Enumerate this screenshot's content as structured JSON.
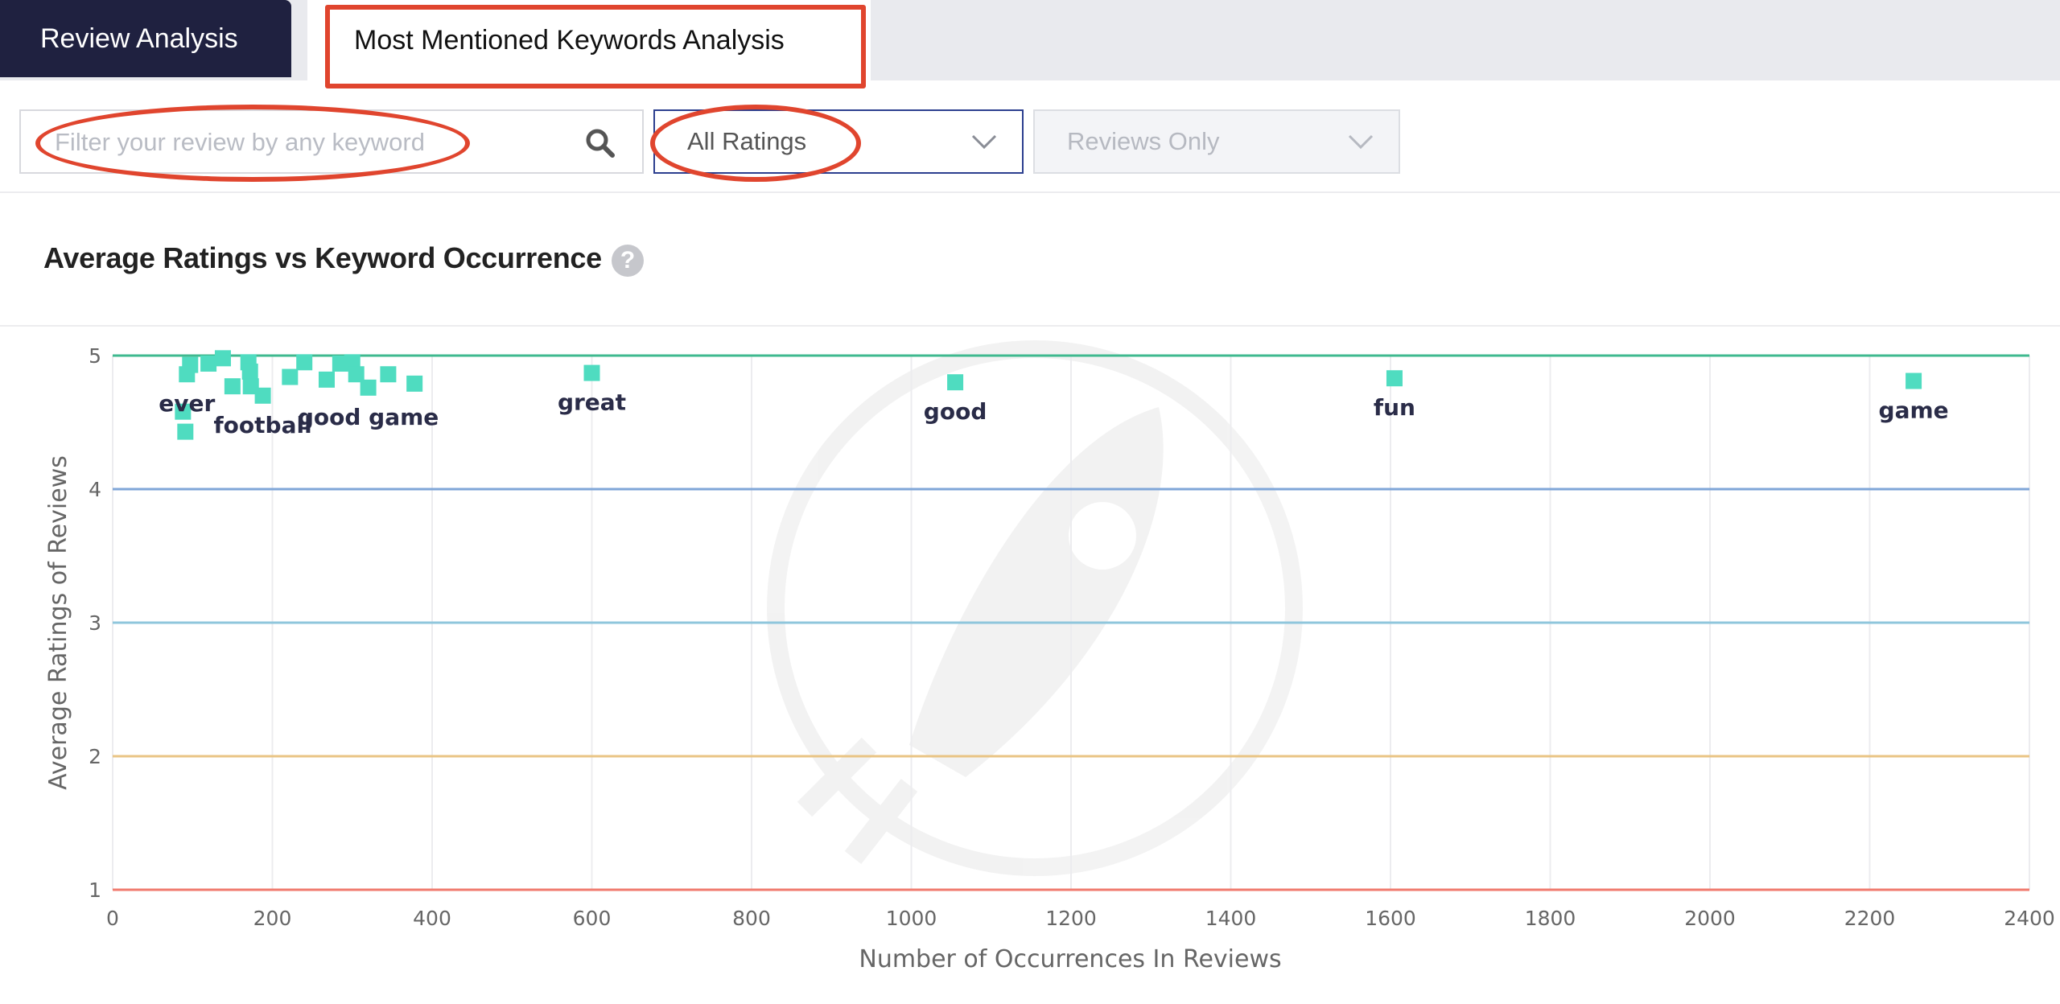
{
  "tabs": [
    {
      "label": "Review Analysis",
      "active": false
    },
    {
      "label": "Most Mentioned Keywords Analysis",
      "active": true
    }
  ],
  "filters": {
    "search_placeholder": "Filter your review by any keyword",
    "ratings_select": "All Ratings",
    "type_select": "Reviews Only"
  },
  "icons": {
    "search": "search-icon",
    "dropdown": "chevron-down-icon",
    "help": "help-icon"
  },
  "colors": {
    "tab_active_bg": "#1f2140",
    "highlight": "#e0452e",
    "point": "#4fdcc0",
    "line_5": "#3fb98f",
    "line_4": "#7fa6d8",
    "line_3": "#8fc6dc",
    "line_2": "#e9c484",
    "line_1": "#f07a6e"
  },
  "chart_data": {
    "type": "scatter",
    "title": "Average Ratings vs Keyword Occurrence",
    "help_glyph": "?",
    "xlabel": "Number of Occurrences In Reviews",
    "ylabel": "Average Ratings of Reviews",
    "xlim": [
      0,
      2400
    ],
    "ylim": [
      1,
      5
    ],
    "xticks": [
      0,
      200,
      400,
      600,
      800,
      1000,
      1200,
      1400,
      1600,
      1800,
      2000,
      2200,
      2400
    ],
    "yticks": [
      1,
      2,
      3,
      4,
      5
    ],
    "rating_lines": [
      {
        "y": 5,
        "color": "#3fb98f"
      },
      {
        "y": 4,
        "color": "#7fa6d8"
      },
      {
        "y": 3,
        "color": "#8fc6dc"
      },
      {
        "y": 2,
        "color": "#e9c484"
      },
      {
        "y": 1,
        "color": "#f07a6e"
      }
    ],
    "points": [
      {
        "x": 88,
        "y": 4.58,
        "label": ""
      },
      {
        "x": 91,
        "y": 4.43,
        "label": ""
      },
      {
        "x": 93,
        "y": 4.86,
        "label": "ever"
      },
      {
        "x": 97,
        "y": 4.93,
        "label": ""
      },
      {
        "x": 120,
        "y": 4.94,
        "label": ""
      },
      {
        "x": 138,
        "y": 4.98,
        "label": ""
      },
      {
        "x": 150,
        "y": 4.77,
        "label": ""
      },
      {
        "x": 170,
        "y": 4.95,
        "label": ""
      },
      {
        "x": 172,
        "y": 4.88,
        "label": ""
      },
      {
        "x": 173,
        "y": 4.77,
        "label": ""
      },
      {
        "x": 188,
        "y": 4.7,
        "label": "football"
      },
      {
        "x": 222,
        "y": 4.84,
        "label": ""
      },
      {
        "x": 240,
        "y": 4.95,
        "label": ""
      },
      {
        "x": 268,
        "y": 4.82,
        "label": ""
      },
      {
        "x": 285,
        "y": 4.94,
        "label": ""
      },
      {
        "x": 300,
        "y": 4.95,
        "label": ""
      },
      {
        "x": 305,
        "y": 4.86,
        "label": ""
      },
      {
        "x": 320,
        "y": 4.76,
        "label": "good game"
      },
      {
        "x": 345,
        "y": 4.86,
        "label": ""
      },
      {
        "x": 378,
        "y": 4.79,
        "label": ""
      },
      {
        "x": 600,
        "y": 4.87,
        "label": "great"
      },
      {
        "x": 1055,
        "y": 4.8,
        "label": "good"
      },
      {
        "x": 1605,
        "y": 4.83,
        "label": "fun"
      },
      {
        "x": 2255,
        "y": 4.81,
        "label": "game"
      }
    ]
  }
}
